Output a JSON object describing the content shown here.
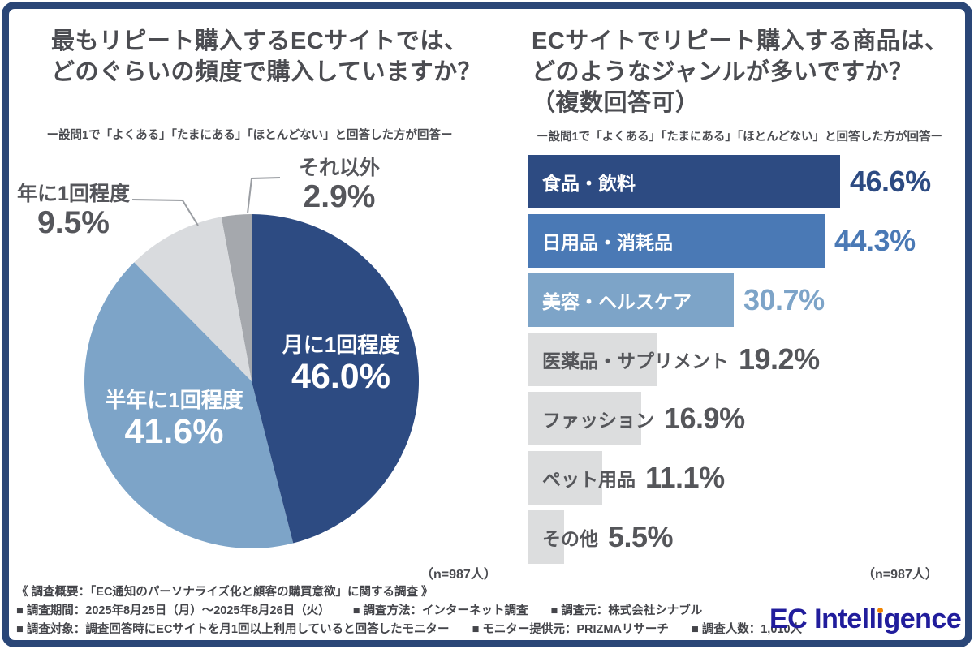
{
  "chart_data": [
    {
      "type": "pie",
      "title_lines": [
        "最もリピート購入するECサイトでは、",
        "どのぐらいの頻度で購入していますか？"
      ],
      "subtitle": "ー設問1で「よくある」「たまにある」「ほとんどない」と回答した方が回答ー",
      "sample_note": "（n=987人）",
      "labels": [
        "月に1回程度",
        "半年に1回程度",
        "年に1回程度",
        "それ以外"
      ],
      "values": [
        46.0,
        41.6,
        9.5,
        2.9
      ],
      "value_labels": [
        "46.0%",
        "41.6%",
        "9.5%",
        "2.9%"
      ],
      "colors": [
        "#2d4b82",
        "#7da4c8",
        "#d9dbde",
        "#a5a8ad"
      ],
      "start_angle_deg": 0,
      "direction": "clockwise",
      "legend_position": "none"
    },
    {
      "type": "bar",
      "orientation": "horizontal",
      "title_lines": [
        "ECサイトでリピート購入する商品は、",
        "どのようなジャンルが多いですか？",
        "（複数回答可）"
      ],
      "subtitle": "ー設問1で「よくある」「たまにある」「ほとんどない」と回答した方が回答ー",
      "sample_note": "（n=987人）",
      "categories": [
        "食品・飲料",
        "日用品・消耗品",
        "美容・ヘルスケア",
        "医薬品・サプリメント",
        "ファッション",
        "ペット用品",
        "その他"
      ],
      "values": [
        46.6,
        44.3,
        30.7,
        19.2,
        16.9,
        11.1,
        5.5
      ],
      "value_labels": [
        "46.6%",
        "44.3%",
        "30.7%",
        "19.2%",
        "16.9%",
        "11.1%",
        "5.5%"
      ],
      "bar_colors": [
        "#2d4b82",
        "#4a79b5",
        "#7da4c8",
        "#dcddde",
        "#dcddde",
        "#dcddde",
        "#dcddde"
      ],
      "label_colors": [
        "#ffffff",
        "#ffffff",
        "#ffffff",
        "#55565a",
        "#55565a",
        "#55565a",
        "#55565a"
      ],
      "pct_colors": [
        "#2d4b82",
        "#4a79b5",
        "#7da4c8",
        "#55565a",
        "#55565a",
        "#55565a",
        "#55565a"
      ],
      "xlim": [
        0,
        50
      ],
      "grid": false
    }
  ],
  "footer": {
    "line1": "《 調査概要：「EC通知のパーソナライズ化と顧客の購買意欲」に関する調査 》",
    "line2_segments": [
      "■ 調査期間：2025年8月25日（月）〜2025年8月26日（火）",
      "■ 調査方法：インターネット調査",
      "■ 調査元：株式会社シナブル"
    ],
    "line3_segments": [
      "■ 調査対象：調査回答時にECサイトを月1回以上利用していると回答したモニター",
      "■ モニター提供元：PRIZMAリサーチ",
      "■ 調査人数：1,010人"
    ]
  },
  "logo": {
    "prefix": "EC Intell",
    "i_base": "ı",
    "suffix": "gence",
    "text_color": "#211d9c",
    "dot_color": "#f08300"
  },
  "frame_color": "#2a4677"
}
